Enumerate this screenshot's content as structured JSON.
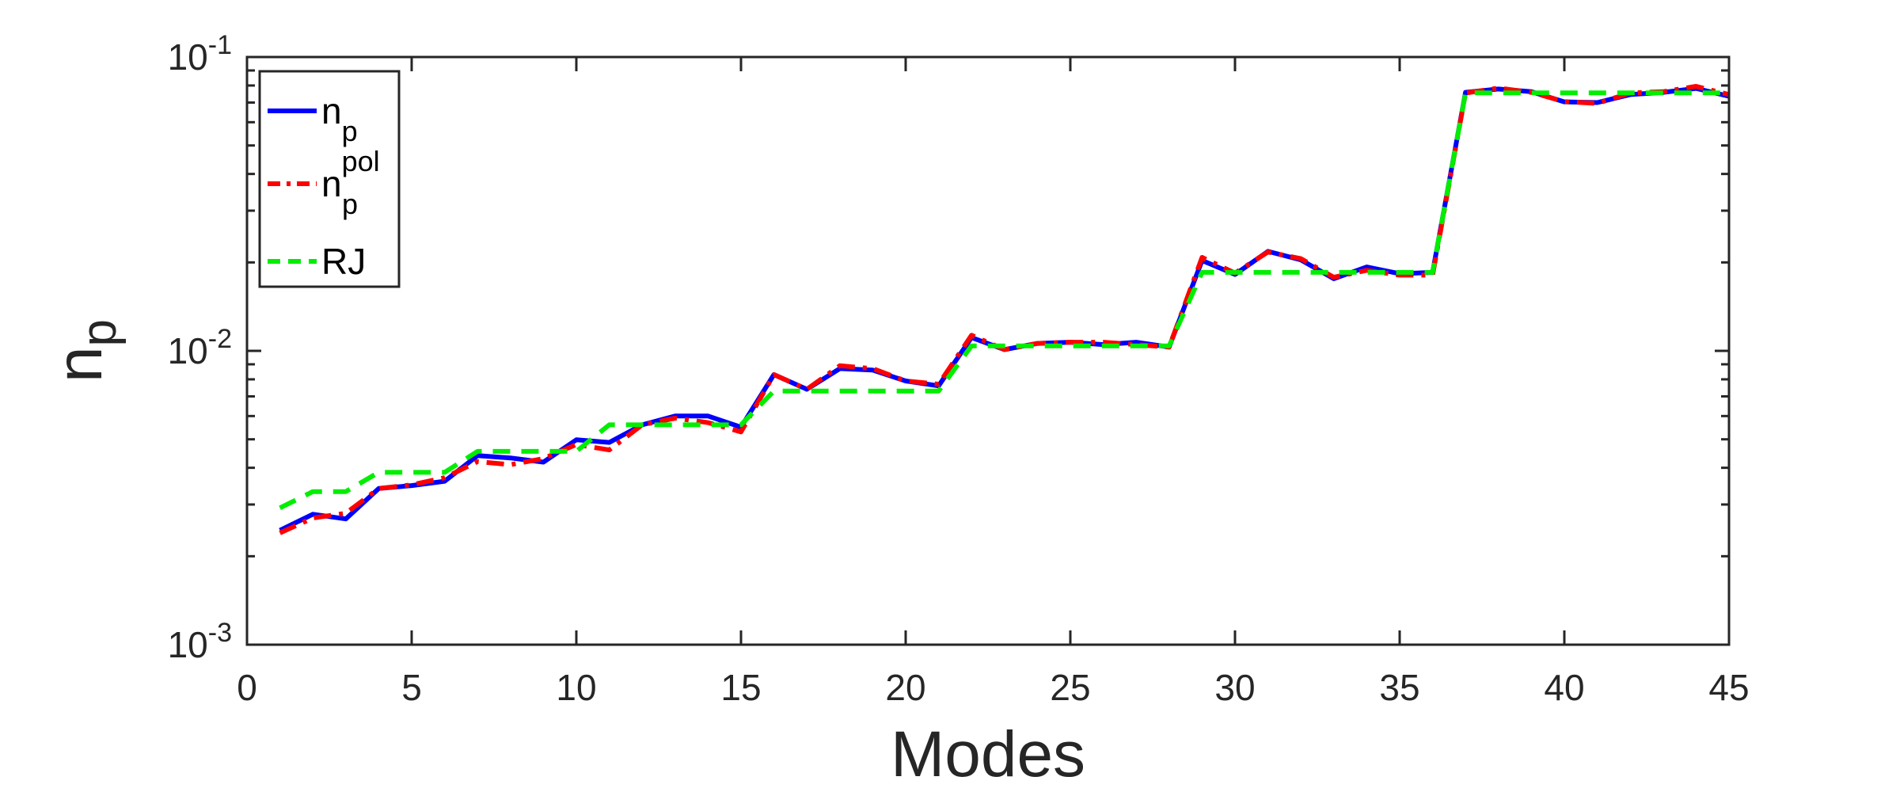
{
  "chart_data": {
    "type": "line",
    "title": "",
    "xlabel": "Modes",
    "ylabel": {
      "base": "n",
      "sub": "p"
    },
    "xlim": [
      0,
      45
    ],
    "ylim": [
      0.001,
      0.1
    ],
    "yscale": "log",
    "xticks": [
      "0",
      "5",
      "10",
      "15",
      "20",
      "25",
      "30",
      "35",
      "40",
      "45"
    ],
    "yticks": [
      {
        "base": "10",
        "exp": "-3"
      },
      {
        "base": "10",
        "exp": "-2"
      },
      {
        "base": "10",
        "exp": "-1"
      }
    ],
    "grid": false,
    "legend_position": "top-left",
    "x": [
      1,
      2,
      3,
      4,
      5,
      6,
      7,
      8,
      9,
      10,
      11,
      12,
      13,
      14,
      15,
      16,
      17,
      18,
      19,
      20,
      21,
      22,
      23,
      24,
      25,
      26,
      27,
      28,
      29,
      30,
      31,
      32,
      33,
      34,
      35,
      36,
      37,
      38,
      39,
      40,
      41,
      42,
      43,
      44,
      45
    ],
    "series": [
      {
        "name": "n",
        "name_sub": "p",
        "name_sup": "",
        "color": "#0000ff",
        "style": "solid",
        "values": [
          0.00245,
          0.00278,
          0.00268,
          0.0034,
          0.00348,
          0.0036,
          0.0044,
          0.00432,
          0.00418,
          0.00498,
          0.00488,
          0.0056,
          0.006,
          0.006,
          0.0055,
          0.0083,
          0.0074,
          0.0087,
          0.0086,
          0.0079,
          0.0076,
          0.0111,
          0.0101,
          0.0106,
          0.0107,
          0.0105,
          0.0107,
          0.0103,
          0.0203,
          0.0182,
          0.0218,
          0.0204,
          0.0176,
          0.0193,
          0.0183,
          0.0185,
          0.0758,
          0.0778,
          0.0762,
          0.0704,
          0.07,
          0.0745,
          0.0758,
          0.0782,
          0.0735
        ]
      },
      {
        "name": "n",
        "name_sub": "p",
        "name_sup": "pol",
        "color": "#ff0000",
        "style": "dashdot",
        "values": [
          0.0024,
          0.0027,
          0.0028,
          0.0034,
          0.0035,
          0.0037,
          0.0042,
          0.0041,
          0.0043,
          0.0048,
          0.0046,
          0.0056,
          0.0059,
          0.0057,
          0.0053,
          0.0083,
          0.0074,
          0.0089,
          0.0087,
          0.0079,
          0.0077,
          0.0113,
          0.0101,
          0.0106,
          0.0107,
          0.0107,
          0.0105,
          0.0103,
          0.0208,
          0.0184,
          0.0217,
          0.0206,
          0.0178,
          0.0188,
          0.0181,
          0.0181,
          0.0754,
          0.0784,
          0.0758,
          0.0705,
          0.0695,
          0.0755,
          0.0762,
          0.0795,
          0.0745
        ]
      },
      {
        "name": "RJ",
        "name_sub": "",
        "name_sup": "",
        "color": "#00ee00",
        "style": "dashed",
        "values": [
          0.00292,
          0.00332,
          0.00332,
          0.00386,
          0.00386,
          0.00386,
          0.00455,
          0.00455,
          0.00455,
          0.00455,
          0.0056,
          0.0056,
          0.0056,
          0.0056,
          0.0056,
          0.0073,
          0.0073,
          0.0073,
          0.0073,
          0.0073,
          0.0073,
          0.0104,
          0.0104,
          0.0104,
          0.0104,
          0.0104,
          0.0104,
          0.0104,
          0.0185,
          0.0185,
          0.0185,
          0.0185,
          0.0185,
          0.0185,
          0.0185,
          0.0185,
          0.0755,
          0.0755,
          0.0755,
          0.0755,
          0.0755,
          0.0755,
          0.0755,
          0.0755,
          0.0755
        ]
      }
    ]
  }
}
